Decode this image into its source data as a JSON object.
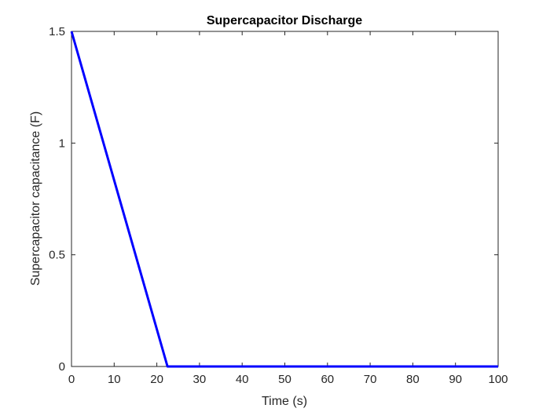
{
  "chart_data": {
    "type": "line",
    "title": "Supercapacitor Discharge",
    "xlabel": "Time (s)",
    "ylabel": "Supercapacitor capacitance (F)",
    "xlim": [
      0,
      100
    ],
    "ylim": [
      0,
      1.5
    ],
    "xticks": [
      0,
      10,
      20,
      30,
      40,
      50,
      60,
      70,
      80,
      90,
      100
    ],
    "yticks": [
      0,
      0.5,
      1,
      1.5
    ],
    "xtick_labels": [
      "0",
      "10",
      "20",
      "30",
      "40",
      "50",
      "60",
      "70",
      "80",
      "90",
      "100"
    ],
    "ytick_labels": [
      "0",
      "0.5",
      "1",
      "1.5"
    ],
    "grid": false,
    "series": [
      {
        "color": "#0000ff",
        "x": [
          0,
          22.5,
          100
        ],
        "y": [
          1.5,
          0,
          0
        ]
      }
    ]
  }
}
